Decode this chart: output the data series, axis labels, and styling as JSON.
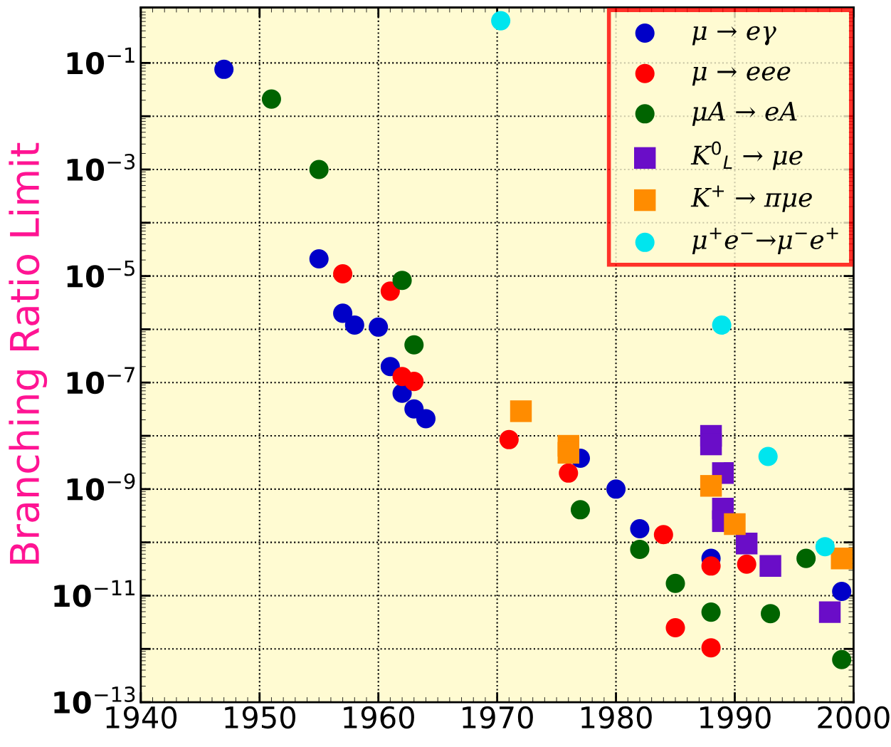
{
  "chart_data": {
    "type": "scatter",
    "ylabel": "Branching Ratio Limit",
    "log": "y",
    "grid": true,
    "legend": "top right",
    "xlim": [
      1940,
      2000
    ],
    "xticks": [
      1940,
      1950,
      1960,
      1970,
      1980,
      1990,
      2000
    ],
    "ylim": [
      1e-13,
      1.1
    ],
    "yticks": [
      {
        "value": 1e-13,
        "label": "10$^{−13}$"
      },
      {
        "value": 1e-12,
        "label": null
      },
      {
        "value": 1e-11,
        "label": "10$^{−11}$"
      },
      {
        "value": 1e-10,
        "label": null
      },
      {
        "value": 1e-09,
        "label": "10$^{−9}$"
      },
      {
        "value": 1e-08,
        "label": null
      },
      {
        "value": 1e-07,
        "label": "10$^{−7}$"
      },
      {
        "value": 1e-06,
        "label": null
      },
      {
        "value": 1e-05,
        "label": "10$^{−5}$"
      },
      {
        "value": 0.0001,
        "label": null
      },
      {
        "value": 0.001,
        "label": "10$^{−3}$"
      },
      {
        "value": 0.01,
        "label": null
      },
      {
        "value": 0.1,
        "label": "10$^{−1}$"
      }
    ],
    "series": [
      {
        "name": "μ → eγ",
        "color": "#0000c8",
        "marker": "circle",
        "x": [
          1947,
          1955,
          1957,
          1958,
          1960,
          1961,
          1962,
          1963,
          1964,
          1977,
          1980,
          1982,
          1988,
          1999
        ],
        "values": [
          0.076,
          2.1e-05,
          2e-06,
          1.2e-06,
          1.1e-06,
          2e-07,
          6.3e-08,
          3.2e-08,
          2.1e-08,
          3.8e-09,
          1e-09,
          1.8e-10,
          5e-11,
          1.2e-11
        ]
      },
      {
        "name": "μ → eee",
        "color": "#ff0000",
        "marker": "circle",
        "x": [
          1957,
          1961,
          1962,
          1963,
          1971,
          1976,
          1984,
          1988,
          1991,
          1985,
          1988
        ],
        "values": [
          1.1e-05,
          5.2e-06,
          1.3e-07,
          1.05e-07,
          8.5e-09,
          2e-09,
          1.4e-10,
          3.6e-11,
          3.9e-11,
          2.5e-12,
          1.05e-12
        ]
      },
      {
        "name": "μA → eA",
        "color": "#006400",
        "marker": "circle",
        "x": [
          1951,
          1955,
          1962,
          1963,
          1977,
          1982,
          1985,
          1988,
          1993,
          1996,
          1999
        ],
        "values": [
          0.021,
          0.001,
          8.3e-06,
          5.1e-07,
          4.1e-10,
          7.4e-11,
          1.7e-11,
          4.9e-12,
          4.6e-12,
          5e-11,
          6.3e-13
        ]
      },
      {
        "name": "K$^{0}$$_{L}$ → μe",
        "color": "#6a0dc8",
        "marker": "square",
        "x": [
          1988,
          1988,
          1989,
          1989,
          1989,
          1991,
          1993,
          1998
        ],
        "values": [
          1e-08,
          6.9e-09,
          2e-09,
          4.3e-10,
          2.5e-10,
          9.5e-11,
          3.6e-11,
          4.9e-12
        ]
      },
      {
        "name": "K$^{+}$ → πμe",
        "color": "#ff8c00",
        "marker": "square",
        "x": [
          1972,
          1976,
          1976,
          1988,
          1990,
          1999
        ],
        "values": [
          2.9e-08,
          6.5e-09,
          4.8e-09,
          1.15e-09,
          2.2e-10,
          5e-11
        ]
      },
      {
        "name": "μ$^{+}$e$^{−}$→μ$^{−}$e$^{+}$",
        "color": "#00e5ee",
        "marker": "circle",
        "x": [
          1970.3,
          1988.9,
          1992.8,
          1997.6
        ],
        "values": [
          0.62,
          1.2e-06,
          4.1e-09,
          8.3e-11
        ]
      }
    ]
  }
}
